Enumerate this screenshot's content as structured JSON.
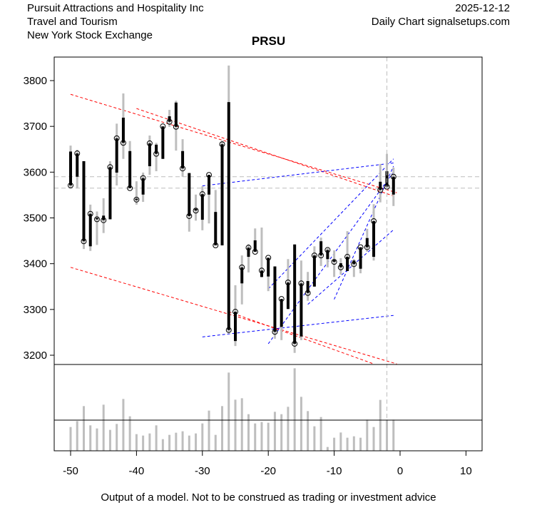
{
  "header": {
    "company": "Pursuit Attractions and Hospitality Inc",
    "sector": "Travel and Tourism",
    "exchange": "New York Stock Exchange",
    "date": "2025-12-12",
    "source": "Daily Chart signalsetups.com"
  },
  "footer": "Output of a model. Not to be construed as trading or investment advice",
  "chart_data": {
    "type": "ohlc",
    "title": "PRSU",
    "xlim": [
      -52.5,
      12.5
    ],
    "ylim": [
      3180,
      3850
    ],
    "xticks": [
      -50,
      -40,
      -30,
      -20,
      -10,
      0,
      10
    ],
    "yticks": [
      3200,
      3300,
      3400,
      3500,
      3600,
      3700,
      3800
    ],
    "colors": {
      "body": "#000000",
      "wick": "#bebebe",
      "resistance": "#ff0000",
      "support_trend": "#0000ff",
      "reference": "#bebebe",
      "volume": "#bebebe"
    },
    "bars": [
      {
        "x": -50,
        "open": 3645,
        "high": 3658,
        "low": 3565,
        "close": 3571
      },
      {
        "x": -49,
        "open": 3590,
        "high": 3649,
        "low": 3565,
        "close": 3641
      },
      {
        "x": -48,
        "open": 3624,
        "high": 3624,
        "low": 3432,
        "close": 3449
      },
      {
        "x": -47,
        "open": 3438,
        "high": 3529,
        "low": 3428,
        "close": 3509
      },
      {
        "x": -46,
        "open": 3500,
        "high": 3514,
        "low": 3441,
        "close": 3497
      },
      {
        "x": -45,
        "open": 3505,
        "high": 3543,
        "low": 3467,
        "close": 3495
      },
      {
        "x": -44,
        "open": 3497,
        "high": 3624,
        "low": 3497,
        "close": 3611
      },
      {
        "x": -43,
        "open": 3599,
        "high": 3706,
        "low": 3571,
        "close": 3674
      },
      {
        "x": -42,
        "open": 3719,
        "high": 3772,
        "low": 3629,
        "close": 3664
      },
      {
        "x": -41,
        "open": 3646,
        "high": 3668,
        "low": 3565,
        "close": 3565
      },
      {
        "x": -40,
        "open": 3542,
        "high": 3580,
        "low": 3529,
        "close": 3540
      },
      {
        "x": -39,
        "open": 3551,
        "high": 3599,
        "low": 3535,
        "close": 3587
      },
      {
        "x": -38,
        "open": 3613,
        "high": 3680,
        "low": 3594,
        "close": 3663
      },
      {
        "x": -37,
        "open": 3660,
        "high": 3664,
        "low": 3602,
        "close": 3640
      },
      {
        "x": -36,
        "open": 3629,
        "high": 3700,
        "low": 3629,
        "close": 3700
      },
      {
        "x": -35,
        "open": 3722,
        "high": 3736,
        "low": 3699,
        "close": 3710
      },
      {
        "x": -34,
        "open": 3752,
        "high": 3756,
        "low": 3647,
        "close": 3699
      },
      {
        "x": -33,
        "open": 3646,
        "high": 3672,
        "low": 3590,
        "close": 3608
      },
      {
        "x": -32,
        "open": 3598,
        "high": 3598,
        "low": 3470,
        "close": 3504
      },
      {
        "x": -31,
        "open": 3520,
        "high": 3551,
        "low": 3494,
        "close": 3516
      },
      {
        "x": -30,
        "open": 3496,
        "high": 3569,
        "low": 3473,
        "close": 3552
      },
      {
        "x": -29,
        "open": 3551,
        "high": 3594,
        "low": 3488,
        "close": 3594
      },
      {
        "x": -28,
        "open": 3513,
        "high": 3561,
        "low": 3440,
        "close": 3440
      },
      {
        "x": -27,
        "open": 3440,
        "high": 3669,
        "low": 3440,
        "close": 3661
      },
      {
        "x": -26,
        "open": 3753,
        "high": 3833,
        "low": 3247,
        "close": 3255
      },
      {
        "x": -25,
        "open": 3231,
        "high": 3353,
        "low": 3220,
        "close": 3295
      },
      {
        "x": -24,
        "open": 3357,
        "high": 3418,
        "low": 3311,
        "close": 3392
      },
      {
        "x": -23,
        "open": 3415,
        "high": 3443,
        "low": 3381,
        "close": 3435
      },
      {
        "x": -22,
        "open": 3451,
        "high": 3477,
        "low": 3426,
        "close": 3426
      },
      {
        "x": -21,
        "open": 3371,
        "high": 3479,
        "low": 3370,
        "close": 3385
      },
      {
        "x": -20,
        "open": 3372,
        "high": 3413,
        "low": 3340,
        "close": 3413
      },
      {
        "x": -19,
        "open": 3394,
        "high": 3394,
        "low": 3236,
        "close": 3251
      },
      {
        "x": -18,
        "open": 3262,
        "high": 3323,
        "low": 3233,
        "close": 3323
      },
      {
        "x": -17,
        "open": 3301,
        "high": 3410,
        "low": 3301,
        "close": 3359
      },
      {
        "x": -16,
        "open": 3442,
        "high": 3442,
        "low": 3205,
        "close": 3225
      },
      {
        "x": -15,
        "open": 3241,
        "high": 3407,
        "low": 3233,
        "close": 3357
      },
      {
        "x": -14,
        "open": 3362,
        "high": 3382,
        "low": 3319,
        "close": 3336
      },
      {
        "x": -13,
        "open": 3350,
        "high": 3438,
        "low": 3350,
        "close": 3418
      },
      {
        "x": -12,
        "open": 3449,
        "high": 3457,
        "low": 3395,
        "close": 3418
      },
      {
        "x": -11,
        "open": 3410,
        "high": 3434,
        "low": 3392,
        "close": 3430
      },
      {
        "x": -10,
        "open": 3408,
        "high": 3429,
        "low": 3371,
        "close": 3404
      },
      {
        "x": -9,
        "open": 3401,
        "high": 3412,
        "low": 3376,
        "close": 3392
      },
      {
        "x": -8,
        "open": 3384,
        "high": 3471,
        "low": 3384,
        "close": 3415
      },
      {
        "x": -7,
        "open": 3407,
        "high": 3410,
        "low": 3371,
        "close": 3399
      },
      {
        "x": -6,
        "open": 3389,
        "high": 3436,
        "low": 3379,
        "close": 3436
      },
      {
        "x": -5,
        "open": 3456,
        "high": 3476,
        "low": 3426,
        "close": 3436
      },
      {
        "x": -4,
        "open": 3415,
        "high": 3530,
        "low": 3407,
        "close": 3493
      },
      {
        "x": -3,
        "open": 3579,
        "high": 3618,
        "low": 3534,
        "close": 3561
      },
      {
        "x": -2,
        "open": 3602,
        "high": 3640,
        "low": 3563,
        "close": 3568
      },
      {
        "x": -1,
        "open": 3551,
        "high": 3610,
        "low": 3526,
        "close": 3590
      }
    ],
    "volume": [
      100,
      125,
      188,
      107,
      94,
      194,
      88,
      113,
      218,
      145,
      70,
      64,
      73,
      107,
      49,
      67,
      76,
      82,
      64,
      73,
      115,
      169,
      67,
      188,
      329,
      215,
      221,
      154,
      115,
      121,
      118,
      164,
      154,
      185,
      347,
      227,
      167,
      103,
      142,
      16,
      55,
      77,
      55,
      61,
      55,
      131,
      100,
      214,
      131,
      131
    ],
    "reference_levels": [
      3590,
      3565
    ],
    "reference_x": -2,
    "trendlines": [
      {
        "kind": "resistance",
        "from": [
          -50,
          3770
        ],
        "to": [
          -0.5,
          3555
        ]
      },
      {
        "kind": "resistance",
        "from": [
          -40,
          3739
        ],
        "to": [
          -1,
          3548
        ]
      },
      {
        "kind": "resistance",
        "from": [
          -50,
          3392
        ],
        "to": [
          -0.5,
          3181
        ]
      },
      {
        "kind": "resistance",
        "from": [
          -26,
          3295
        ],
        "to": [
          -4,
          3181
        ]
      },
      {
        "kind": "support_trend",
        "from": [
          -30,
          3570
        ],
        "to": [
          -1,
          3620
        ]
      },
      {
        "kind": "support_trend",
        "from": [
          -30,
          3240
        ],
        "to": [
          -1,
          3287
        ]
      },
      {
        "kind": "support_trend",
        "from": [
          -20,
          3345
        ],
        "to": [
          -1,
          3629
        ]
      },
      {
        "kind": "support_trend",
        "from": [
          -20,
          3225
        ],
        "to": [
          -1,
          3600
        ]
      },
      {
        "kind": "support_trend",
        "from": [
          -10,
          3322
        ],
        "to": [
          -1,
          3613
        ]
      },
      {
        "kind": "support_trend",
        "from": [
          -14,
          3311
        ],
        "to": [
          -1,
          3474
        ]
      }
    ]
  }
}
